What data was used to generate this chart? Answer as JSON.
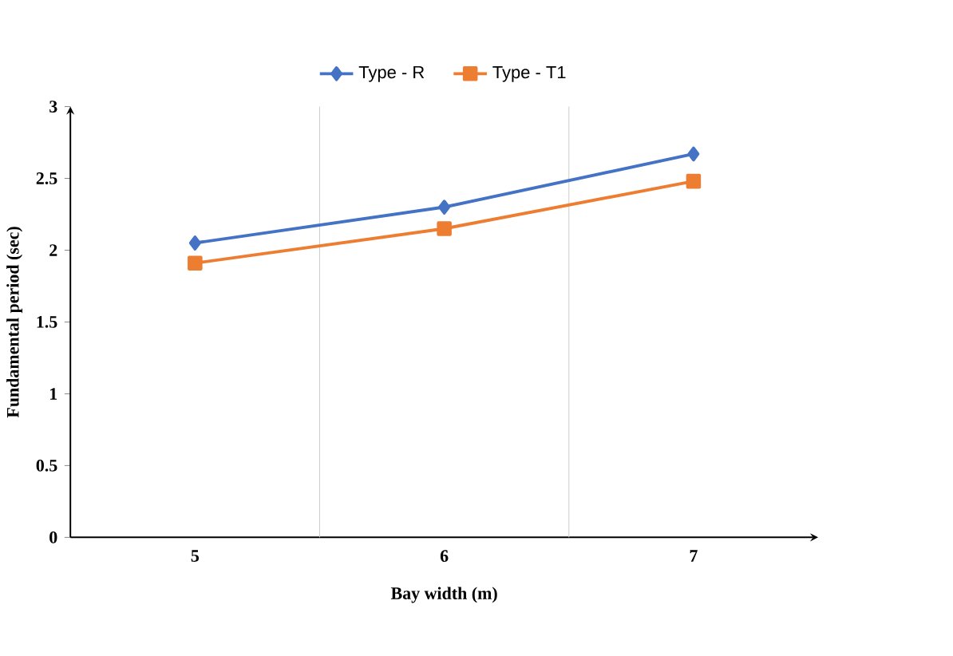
{
  "chart_data": {
    "type": "line",
    "xlabel": "Bay width (m)",
    "ylabel": "Fundamental period (sec)",
    "categories": [
      "5",
      "6",
      "7"
    ],
    "series": [
      {
        "name": "Type - R",
        "color": "#4472c4",
        "marker": "diamond",
        "values": [
          2.05,
          2.3,
          2.67
        ]
      },
      {
        "name": "Type - T1",
        "color": "#ed7d31",
        "marker": "square",
        "values": [
          1.91,
          2.15,
          2.48
        ]
      }
    ],
    "ylim": [
      0,
      3
    ],
    "yticks": [
      0,
      0.5,
      1,
      1.5,
      2,
      2.5,
      3
    ],
    "grid": "x",
    "legend": "top"
  }
}
